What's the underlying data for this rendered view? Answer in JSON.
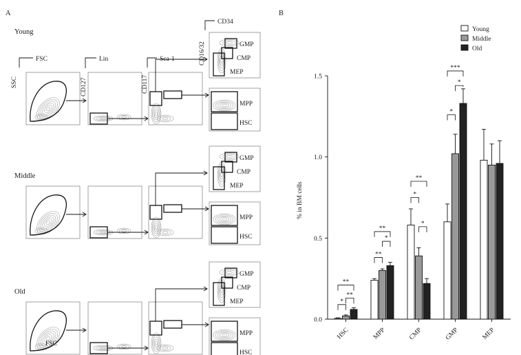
{
  "panel_a": {
    "label": "A",
    "rows": [
      {
        "name": "Young",
        "fsc_gate_label": ""
      },
      {
        "name": "Middle",
        "fsc_gate_label": ""
      },
      {
        "name": "Old",
        "fsc_gate_label": "FSC"
      }
    ],
    "axes": {
      "ssc": "SSC",
      "fsc": "FSC",
      "cd127": "CD127",
      "lin": "Lin",
      "cd117": "CD117",
      "sca1": "Sca-1",
      "cd1632": "CD16/32",
      "cd34": "CD34"
    },
    "gates": {
      "gmp": "GMP",
      "cmp": "CMP",
      "mep": "MEP",
      "mpp": "MPP",
      "hsc": "HSC"
    }
  },
  "panel_b": {
    "label": "B",
    "chart_data": {
      "type": "bar",
      "ylabel": "% in BM cells",
      "ylim": [
        0,
        1.5
      ],
      "yticks": [
        0.0,
        0.5,
        1.0,
        1.5
      ],
      "ytick_labels": [
        "0.0",
        "0.5",
        "1.0",
        "1.5"
      ],
      "categories": [
        "HSC",
        "MPP",
        "CMP",
        "GMP",
        "MEP"
      ],
      "series": [
        {
          "name": "Young",
          "color": "#ffffff",
          "values": [
            0.005,
            0.24,
            0.58,
            0.6,
            0.98
          ],
          "errors": [
            0.003,
            0.01,
            0.1,
            0.11,
            0.19
          ]
        },
        {
          "name": "Middle",
          "color": "#999999",
          "values": [
            0.02,
            0.3,
            0.39,
            1.02,
            0.95
          ],
          "errors": [
            0.006,
            0.01,
            0.05,
            0.12,
            0.13
          ]
        },
        {
          "name": "Old",
          "color": "#222222",
          "values": [
            0.06,
            0.33,
            0.22,
            1.33,
            0.96
          ],
          "errors": [
            0.01,
            0.02,
            0.03,
            0.09,
            0.14
          ]
        }
      ],
      "significance": [
        {
          "category": "HSC",
          "pair": [
            0,
            1
          ],
          "label": "*",
          "y": 0.09
        },
        {
          "category": "HSC",
          "pair": [
            1,
            2
          ],
          "label": "**",
          "y": 0.13
        },
        {
          "category": "HSC",
          "pair": [
            0,
            2
          ],
          "label": "**",
          "y": 0.21
        },
        {
          "category": "MPP",
          "pair": [
            0,
            1
          ],
          "label": "**",
          "y": 0.38
        },
        {
          "category": "MPP",
          "pair": [
            1,
            2
          ],
          "label": "*",
          "y": 0.48
        },
        {
          "category": "MPP",
          "pair": [
            0,
            2
          ],
          "label": "**",
          "y": 0.54
        },
        {
          "category": "CMP",
          "pair": [
            0,
            1
          ],
          "label": "*",
          "y": 0.75
        },
        {
          "category": "CMP",
          "pair": [
            1,
            2
          ],
          "label": "*",
          "y": 0.57
        },
        {
          "category": "CMP",
          "pair": [
            0,
            2
          ],
          "label": "**",
          "y": 0.85
        },
        {
          "category": "GMP",
          "pair": [
            0,
            1
          ],
          "label": "*",
          "y": 1.26
        },
        {
          "category": "GMP",
          "pair": [
            1,
            2
          ],
          "label": "*",
          "y": 1.44
        },
        {
          "category": "GMP",
          "pair": [
            0,
            2
          ],
          "label": "***",
          "y": 1.53
        }
      ]
    }
  }
}
